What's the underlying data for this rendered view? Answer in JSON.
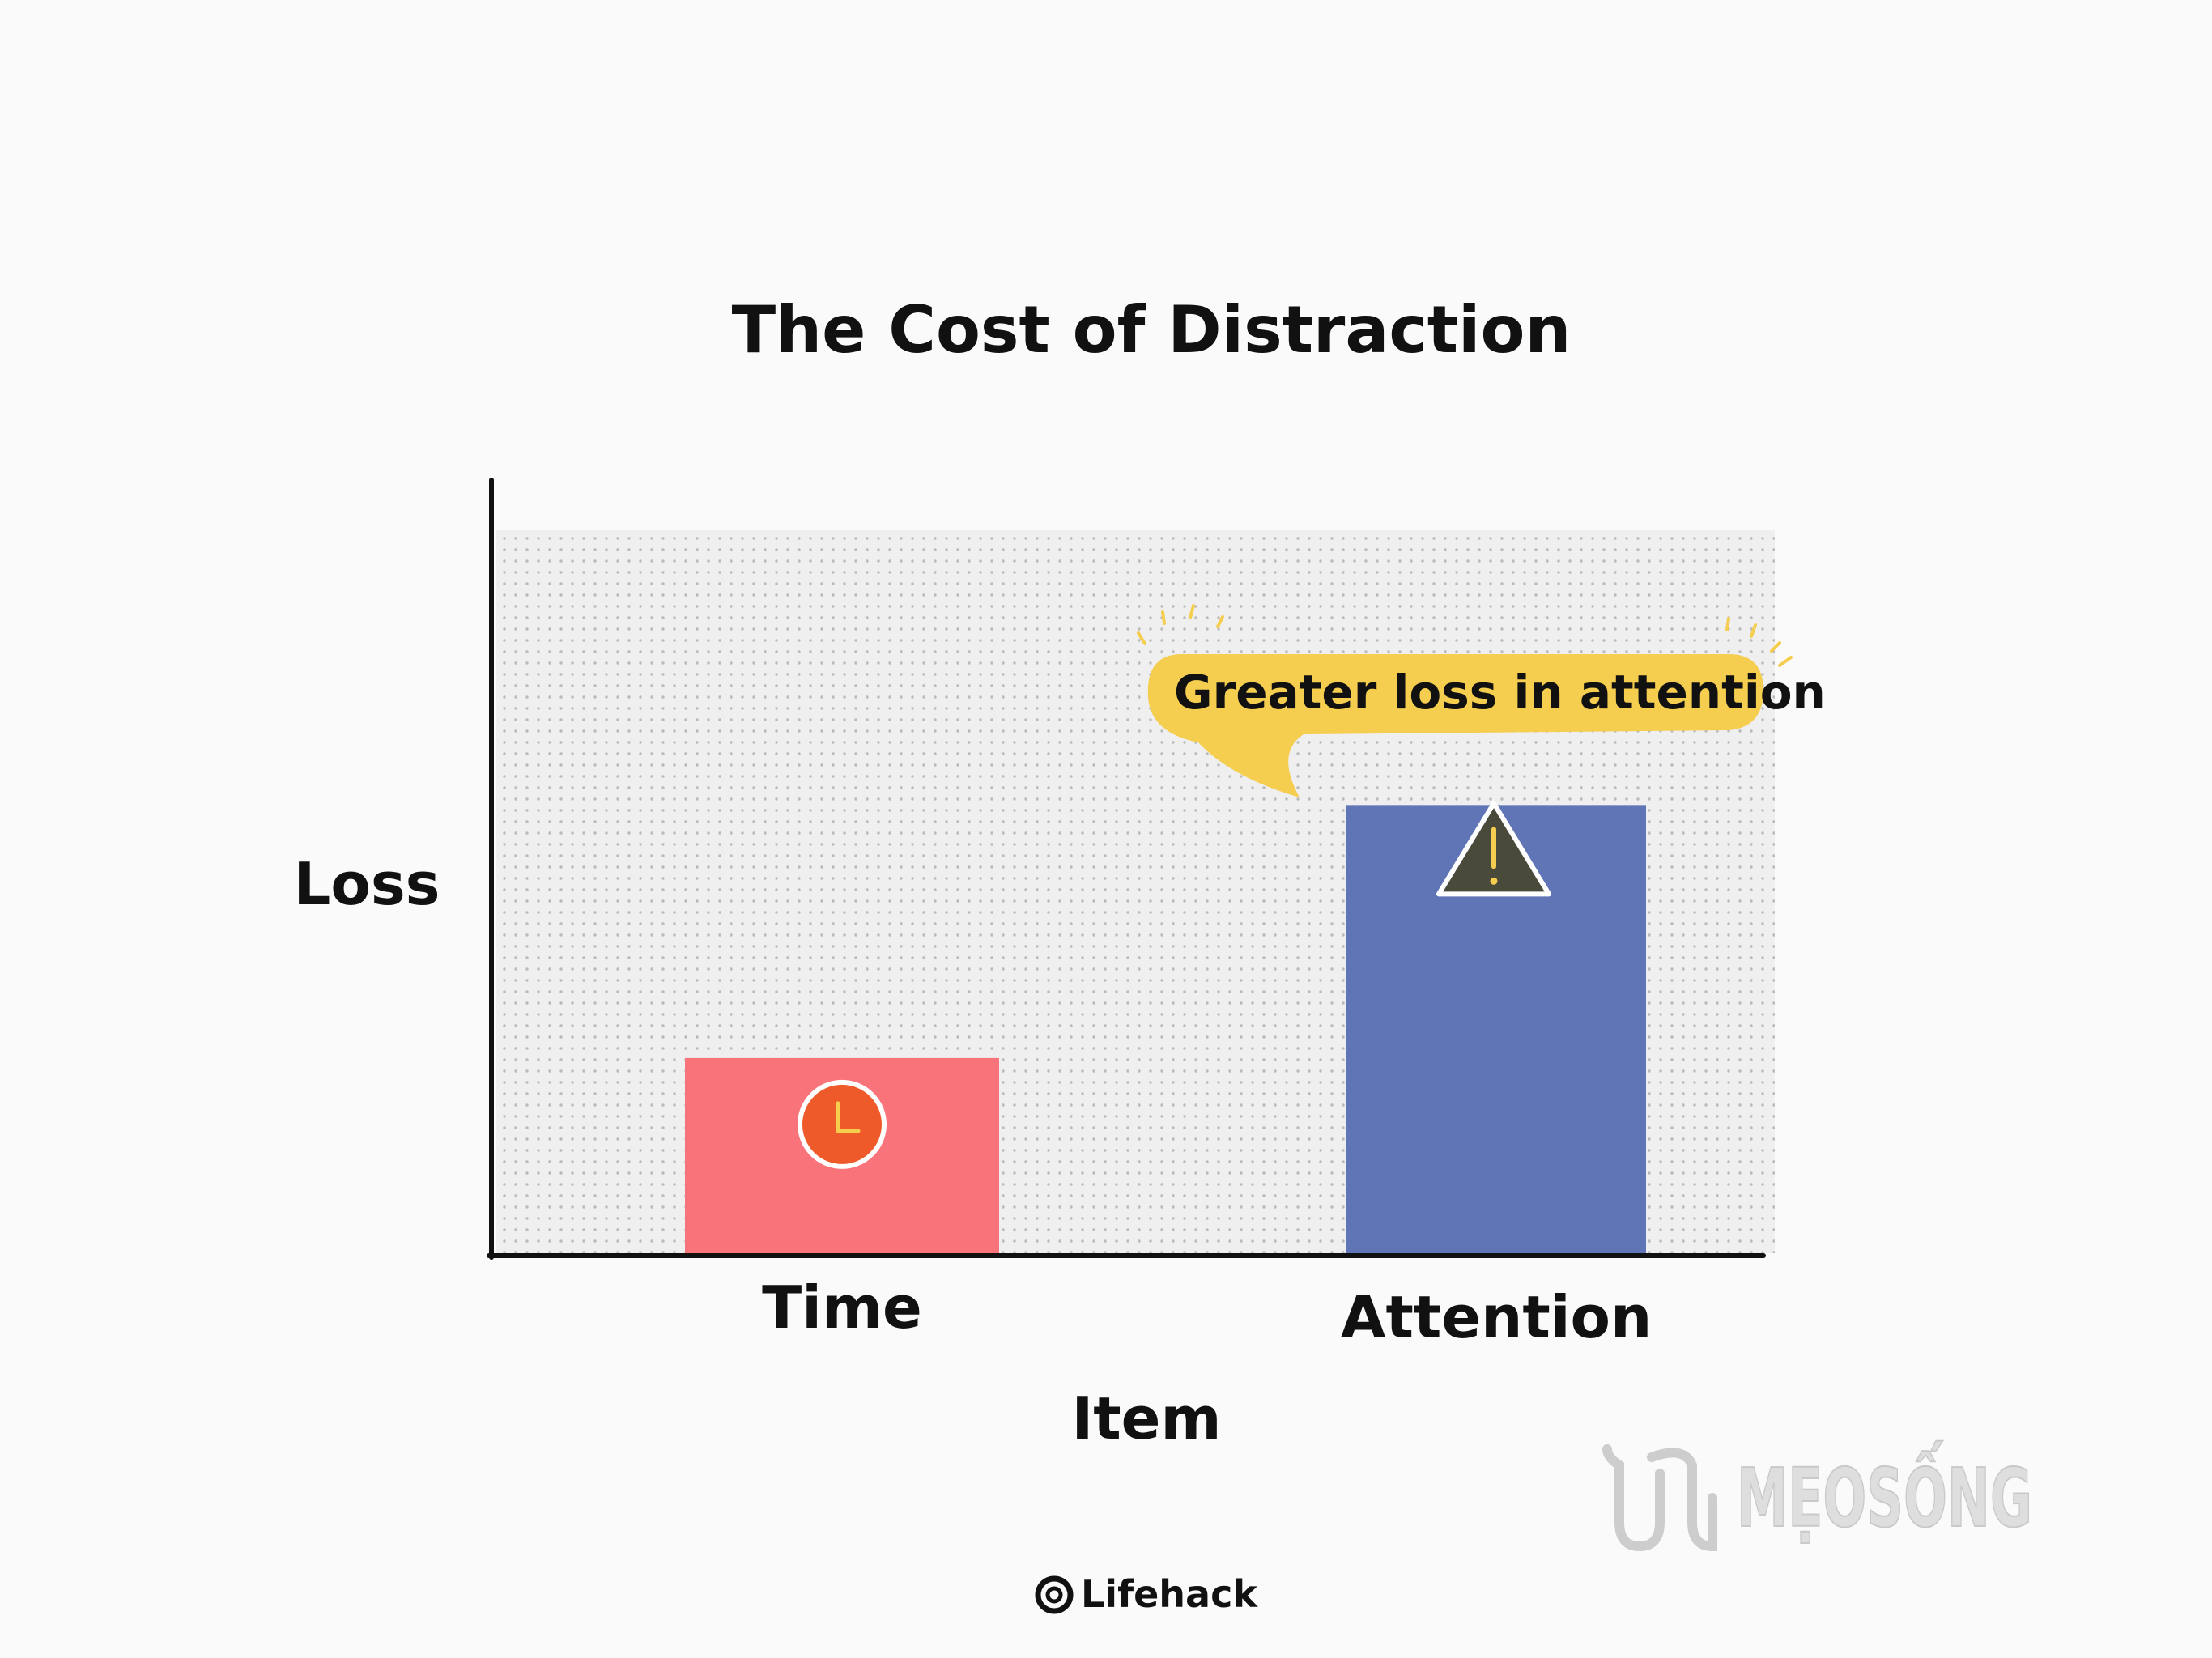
{
  "chart_data": {
    "type": "bar",
    "title": "The Cost of Distraction",
    "xlabel": "Item",
    "ylabel": "Loss",
    "categories": [
      "Time",
      "Attention"
    ],
    "values": [
      27,
      62
    ],
    "ylim": [
      0,
      100
    ],
    "bar_colors": [
      "#f8737a",
      "#5f75b6"
    ],
    "bar_icons": [
      "clock-icon",
      "warning-icon"
    ],
    "grid": "dotted",
    "annotation": {
      "text": "Greater loss in attention",
      "target": "Attention",
      "color": "#f5cd4f"
    }
  },
  "watermark": {
    "text": "MẸOSỐNG"
  },
  "footer": {
    "brand": "Lifehack"
  },
  "colors": {
    "axis": "#111111",
    "plot_background": "#efefef",
    "dot": "#8f8f8f",
    "clock_fill": "#ef5a2a",
    "warning_fill": "#4a4a3a",
    "icon_stroke": "#ffffff",
    "icon_accent": "#f5cd4f"
  }
}
